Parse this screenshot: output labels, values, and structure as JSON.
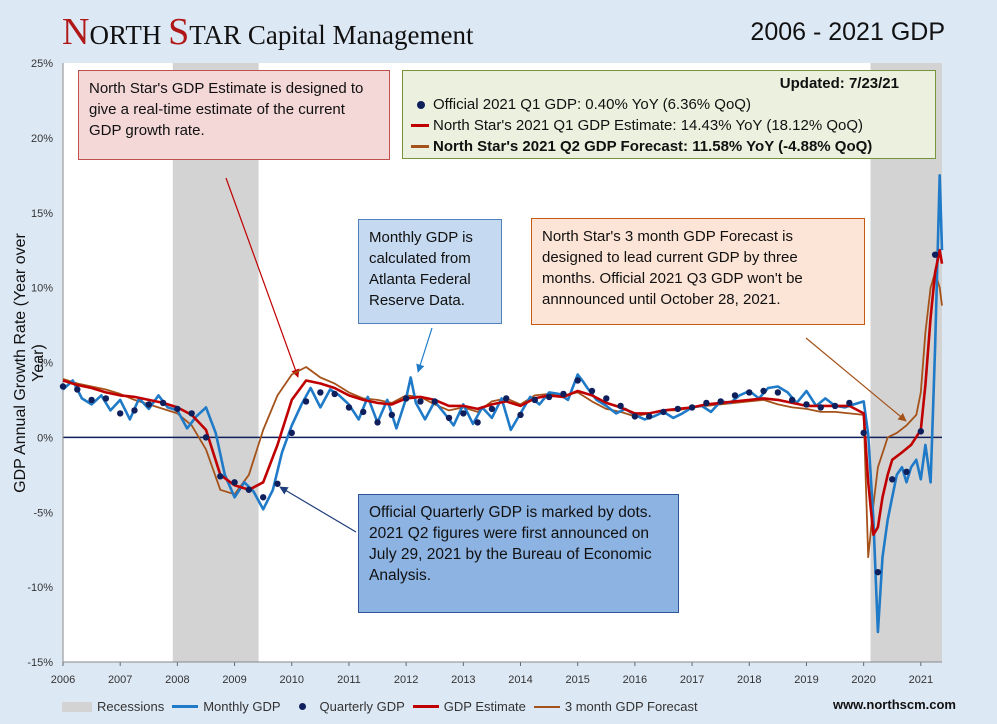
{
  "header": {
    "brand_n": "N",
    "brand_orth": "ORTH ",
    "brand_s": "S",
    "brand_tar": "TAR",
    "brand_rest": " Capital Management",
    "period": "2006 - 2021 GDP"
  },
  "annotations": {
    "estimate": "North Star's GDP Estimate is designed to give a real-time estimate of the current GDP growth rate.",
    "monthly": "Monthly GDP is calculated from Atlanta Federal Reserve Data.",
    "forecast": "North Star's 3 month GDP Forecast is designed to lead current GDP by three months. Official 2021 Q3 GDP won't be annnounced until October 28, 2021.",
    "quarterly": "Official Quarterly GDP is marked by dots. 2021 Q2 figures were first announced on July 29, 2021 by the Bureau of Economic Analysis."
  },
  "legend_box": {
    "updated": "Updated: 7/23/21",
    "official": "Official 2021 Q1 GDP: 0.40% YoY (6.36% QoQ)",
    "estimate": "North Star's 2021 Q1 GDP Estimate:  14.43% YoY (18.12% QoQ)",
    "forecast": "North Star's 2021 Q2 GDP Forecast:  11.58% YoY (-4.88% QoQ)"
  },
  "bottom_legend": {
    "recessions": "Recessions",
    "monthly": "Monthly GDP",
    "quarterly": "Quarterly GDP",
    "estimate": "GDP Estimate",
    "forecast": "3 month GDP Forecast"
  },
  "website": "www.northscm.com",
  "colors": {
    "monthly": "#1f7ac8",
    "quarterly": "#0f1f5c",
    "estimate": "#c00000",
    "forecast": "#a5521a",
    "recession": "#d3d3d3",
    "zero": "#0f1f5c"
  },
  "chart_data": {
    "type": "line",
    "title": "2006 - 2021 GDP",
    "ylabel": "GDP Annual Growth Rate (Year over Year)",
    "xlabel": "",
    "xlim": [
      2006,
      2021.37
    ],
    "ylim": [
      -15,
      25
    ],
    "y_ticks": [
      -15,
      -10,
      -5,
      0,
      5,
      10,
      15,
      20,
      25
    ],
    "y_tick_labels": [
      "-15%",
      "-10%",
      "-5%",
      "0%",
      "5%",
      "10%",
      "15%",
      "20%",
      "25%"
    ],
    "x_ticks": [
      2006,
      2007,
      2008,
      2009,
      2010,
      2011,
      2012,
      2013,
      2014,
      2015,
      2016,
      2017,
      2018,
      2019,
      2020,
      2021
    ],
    "x_tick_labels": [
      "2006",
      "2007",
      "2008",
      "2009",
      "2010",
      "2011",
      "2012",
      "2013",
      "2014",
      "2015",
      "2016",
      "2017",
      "2018",
      "2019",
      "2020",
      "2021"
    ],
    "recessions": [
      [
        2007.92,
        2009.42
      ],
      [
        2020.12,
        2021.37
      ]
    ],
    "series": [
      {
        "name": "Monthly GDP",
        "style": "line",
        "x": [
          2006.0,
          2006.17,
          2006.33,
          2006.5,
          2006.67,
          2006.83,
          2007.0,
          2007.17,
          2007.33,
          2007.5,
          2007.67,
          2007.83,
          2008.0,
          2008.17,
          2008.33,
          2008.5,
          2008.67,
          2008.83,
          2009.0,
          2009.17,
          2009.33,
          2009.5,
          2009.67,
          2009.83,
          2010.0,
          2010.17,
          2010.33,
          2010.5,
          2010.67,
          2010.83,
          2011.0,
          2011.17,
          2011.33,
          2011.5,
          2011.67,
          2011.83,
          2012.0,
          2012.08,
          2012.17,
          2012.33,
          2012.5,
          2012.67,
          2012.83,
          2013.0,
          2013.17,
          2013.33,
          2013.5,
          2013.67,
          2013.83,
          2014.0,
          2014.17,
          2014.33,
          2014.5,
          2014.67,
          2014.83,
          2015.0,
          2015.08,
          2015.17,
          2015.33,
          2015.5,
          2015.67,
          2015.83,
          2016.0,
          2016.17,
          2016.33,
          2016.5,
          2016.67,
          2016.83,
          2017.0,
          2017.17,
          2017.33,
          2017.5,
          2017.67,
          2017.83,
          2018.0,
          2018.17,
          2018.33,
          2018.5,
          2018.67,
          2018.83,
          2019.0,
          2019.17,
          2019.33,
          2019.5,
          2019.67,
          2019.83,
          2020.0,
          2020.08,
          2020.17,
          2020.25,
          2020.33,
          2020.42,
          2020.5,
          2020.58,
          2020.67,
          2020.75,
          2020.83,
          2020.92,
          2021.0,
          2021.08,
          2021.17,
          2021.25,
          2021.33,
          2021.37
        ],
        "values": [
          3.2,
          3.8,
          2.6,
          2.2,
          2.8,
          1.8,
          2.5,
          1.2,
          2.6,
          1.9,
          2.8,
          2.0,
          1.8,
          0.6,
          1.4,
          2.0,
          0.3,
          -2.5,
          -4.0,
          -3.0,
          -3.6,
          -4.8,
          -3.5,
          -1.0,
          0.8,
          2.2,
          3.3,
          2.0,
          3.2,
          2.8,
          2.2,
          1.2,
          2.7,
          1.0,
          2.5,
          0.6,
          2.6,
          4.0,
          2.3,
          1.2,
          2.4,
          1.6,
          0.8,
          2.2,
          0.9,
          2.0,
          1.3,
          2.6,
          0.5,
          1.6,
          2.7,
          2.2,
          3.0,
          2.9,
          2.5,
          4.2,
          3.8,
          3.3,
          2.5,
          2.1,
          1.6,
          1.9,
          1.5,
          1.2,
          1.4,
          1.7,
          1.3,
          1.6,
          2.0,
          2.1,
          1.7,
          2.4,
          2.3,
          2.8,
          3.1,
          2.6,
          3.3,
          3.4,
          3.0,
          2.3,
          3.1,
          2.1,
          2.6,
          2.1,
          2.0,
          2.2,
          2.4,
          0.2,
          -5.5,
          -13.0,
          -8.0,
          -5.5,
          -4.0,
          -2.5,
          -2.0,
          -3.0,
          -2.0,
          -1.5,
          -2.8,
          -0.5,
          -3.0,
          6.0,
          17.5,
          12.5
        ]
      },
      {
        "name": "Quarterly GDP",
        "style": "dots",
        "x": [
          2006.0,
          2006.25,
          2006.5,
          2006.75,
          2007.0,
          2007.25,
          2007.5,
          2007.75,
          2008.0,
          2008.25,
          2008.5,
          2008.75,
          2009.0,
          2009.25,
          2009.5,
          2009.75,
          2010.0,
          2010.25,
          2010.5,
          2010.75,
          2011.0,
          2011.25,
          2011.5,
          2011.75,
          2012.0,
          2012.25,
          2012.5,
          2012.75,
          2013.0,
          2013.25,
          2013.5,
          2013.75,
          2014.0,
          2014.25,
          2014.5,
          2014.75,
          2015.0,
          2015.25,
          2015.5,
          2015.75,
          2016.0,
          2016.25,
          2016.5,
          2016.75,
          2017.0,
          2017.25,
          2017.5,
          2017.75,
          2018.0,
          2018.25,
          2018.5,
          2018.75,
          2019.0,
          2019.25,
          2019.5,
          2019.75,
          2020.0,
          2020.25,
          2020.5,
          2020.75,
          2021.0,
          2021.25
        ],
        "values": [
          3.4,
          3.2,
          2.5,
          2.6,
          1.6,
          1.8,
          2.2,
          2.3,
          1.9,
          1.6,
          0.0,
          -2.6,
          -3.0,
          -3.5,
          -4.0,
          -3.1,
          0.3,
          2.4,
          3.0,
          2.9,
          2.0,
          1.7,
          1.0,
          1.5,
          2.6,
          2.4,
          2.4,
          1.3,
          1.6,
          1.0,
          1.9,
          2.6,
          1.5,
          2.5,
          2.7,
          2.9,
          3.8,
          3.1,
          2.6,
          2.1,
          1.4,
          1.4,
          1.7,
          1.9,
          2.0,
          2.3,
          2.4,
          2.8,
          3.0,
          3.1,
          3.0,
          2.5,
          2.2,
          2.0,
          2.1,
          2.3,
          0.3,
          -9.0,
          -2.8,
          -2.3,
          0.4,
          12.2
        ]
      },
      {
        "name": "GDP Estimate",
        "style": "line",
        "x": [
          2006.0,
          2006.25,
          2006.5,
          2006.75,
          2007.0,
          2007.25,
          2007.5,
          2007.75,
          2008.0,
          2008.25,
          2008.5,
          2008.75,
          2009.0,
          2009.25,
          2009.5,
          2009.75,
          2010.0,
          2010.25,
          2010.5,
          2010.75,
          2011.0,
          2011.25,
          2011.5,
          2011.75,
          2012.0,
          2012.25,
          2012.5,
          2012.75,
          2013.0,
          2013.25,
          2013.5,
          2013.75,
          2014.0,
          2014.25,
          2014.5,
          2014.75,
          2015.0,
          2015.25,
          2015.5,
          2015.75,
          2016.0,
          2016.25,
          2016.5,
          2016.75,
          2017.0,
          2017.25,
          2017.5,
          2017.75,
          2018.0,
          2018.25,
          2018.5,
          2018.75,
          2019.0,
          2019.25,
          2019.5,
          2019.75,
          2020.0,
          2020.08,
          2020.17,
          2020.25,
          2020.33,
          2020.42,
          2020.5,
          2020.67,
          2020.83,
          2021.0,
          2021.08,
          2021.17,
          2021.25,
          2021.33,
          2021.37
        ],
        "values": [
          3.8,
          3.5,
          3.3,
          3.0,
          2.8,
          2.7,
          2.5,
          2.3,
          2.0,
          1.5,
          0.5,
          -2.5,
          -3.2,
          -3.5,
          -3.0,
          -0.5,
          2.5,
          3.8,
          3.6,
          3.3,
          2.8,
          2.5,
          2.3,
          2.2,
          2.6,
          2.7,
          2.5,
          2.1,
          2.1,
          1.9,
          2.2,
          2.4,
          2.1,
          2.6,
          2.8,
          2.7,
          3.1,
          2.8,
          2.3,
          2.0,
          1.6,
          1.6,
          1.8,
          1.9,
          2.0,
          2.2,
          2.3,
          2.4,
          2.5,
          2.6,
          2.5,
          2.3,
          2.1,
          2.1,
          2.1,
          2.1,
          1.6,
          -3.0,
          -6.5,
          -6.0,
          -4.0,
          -2.5,
          -1.5,
          -1.0,
          -0.5,
          0.5,
          3.5,
          8.0,
          11.0,
          12.5,
          11.6
        ]
      },
      {
        "name": "3 month GDP Forecast",
        "style": "line",
        "x": [
          2006.0,
          2006.25,
          2006.5,
          2006.75,
          2007.0,
          2007.25,
          2007.5,
          2007.75,
          2008.0,
          2008.25,
          2008.5,
          2008.75,
          2009.0,
          2009.25,
          2009.5,
          2009.75,
          2010.0,
          2010.25,
          2010.5,
          2010.75,
          2011.0,
          2011.25,
          2011.5,
          2011.75,
          2012.0,
          2012.25,
          2012.5,
          2012.75,
          2013.0,
          2013.25,
          2013.5,
          2013.75,
          2014.0,
          2014.25,
          2014.5,
          2014.75,
          2015.0,
          2015.25,
          2015.5,
          2015.75,
          2016.0,
          2016.25,
          2016.5,
          2016.75,
          2017.0,
          2017.25,
          2017.5,
          2017.75,
          2018.0,
          2018.25,
          2018.5,
          2018.75,
          2019.0,
          2019.25,
          2019.5,
          2019.75,
          2020.0,
          2020.08,
          2020.17,
          2020.25,
          2020.42,
          2020.58,
          2020.75,
          2020.92,
          2021.0,
          2021.08,
          2021.17,
          2021.25,
          2021.33,
          2021.37
        ],
        "values": [
          3.9,
          3.6,
          3.4,
          3.2,
          2.9,
          2.5,
          2.2,
          1.9,
          1.6,
          0.8,
          -0.8,
          -3.5,
          -3.8,
          -2.5,
          0.5,
          2.8,
          4.2,
          4.7,
          4.0,
          3.6,
          3.0,
          2.6,
          2.5,
          2.3,
          2.8,
          2.7,
          2.2,
          1.8,
          2.0,
          1.7,
          2.4,
          2.6,
          2.2,
          2.8,
          2.9,
          2.8,
          3.0,
          2.4,
          1.9,
          1.7,
          1.4,
          1.6,
          1.8,
          1.8,
          2.0,
          2.1,
          2.2,
          2.3,
          2.4,
          2.5,
          2.2,
          2.0,
          1.9,
          1.7,
          1.7,
          1.6,
          1.5,
          -8.0,
          -4.5,
          -2.0,
          0.0,
          0.3,
          0.8,
          1.5,
          3.0,
          7.0,
          10.0,
          11.0,
          10.0,
          8.8
        ]
      }
    ]
  }
}
